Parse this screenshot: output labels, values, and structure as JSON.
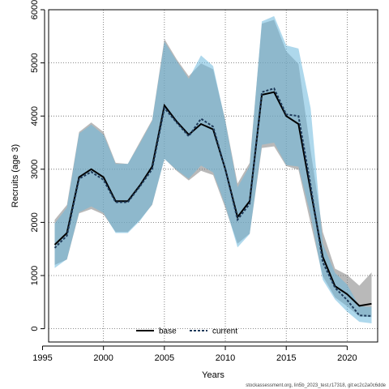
{
  "chart_data": {
    "type": "line",
    "xlabel": "Years",
    "ylabel": "Recruits (age 3)",
    "xlim": [
      1995.5,
      2022.5
    ],
    "ylim": [
      -250,
      6000
    ],
    "xticks": [
      1995,
      2000,
      2005,
      2010,
      2015,
      2020
    ],
    "yticks": [
      0,
      1000,
      2000,
      3000,
      4000,
      5000,
      6000
    ],
    "grid": true,
    "legend_position": "bottom-center",
    "x": [
      1996,
      1997,
      1998,
      1999,
      2000,
      2001,
      2002,
      2003,
      2004,
      2005,
      2006,
      2007,
      2008,
      2009,
      2010,
      2011,
      2012,
      2013,
      2014,
      2015,
      2016,
      2017,
      2018,
      2019,
      2020,
      2021,
      2022
    ],
    "series": [
      {
        "name": "base",
        "color": "#000000",
        "line_style": "solid",
        "band_color": "#808080",
        "values": [
          1580,
          1800,
          2850,
          3000,
          2850,
          2400,
          2400,
          2700,
          3050,
          4200,
          3900,
          3650,
          3850,
          3750,
          3000,
          2100,
          2400,
          4400,
          4450,
          4000,
          3850,
          2600,
          1350,
          800,
          650,
          430,
          470
        ],
        "upper": [
          2050,
          2330,
          3700,
          3880,
          3700,
          3120,
          3100,
          3520,
          3930,
          5450,
          5070,
          4750,
          4990,
          4880,
          3920,
          2730,
          3120,
          5740,
          5810,
          5220,
          4980,
          3350,
          1820,
          1130,
          1010,
          810,
          1060
        ],
        "lower": [
          1200,
          1300,
          2170,
          2250,
          2150,
          1820,
          1820,
          2050,
          2330,
          3200,
          2970,
          2790,
          2970,
          2890,
          2270,
          1600,
          1790,
          3400,
          3430,
          3060,
          2990,
          1980,
          990,
          590,
          420,
          230,
          220
        ]
      },
      {
        "name": "current",
        "color": "#1f3a5a",
        "line_style": "dashed",
        "band_color": "#6cb8dc",
        "values": [
          1520,
          1750,
          2820,
          2950,
          2800,
          2380,
          2380,
          2680,
          3000,
          4150,
          3880,
          3620,
          3950,
          3800,
          3000,
          2050,
          2350,
          4450,
          4520,
          4030,
          4000,
          2700,
          1250,
          770,
          540,
          250,
          240
        ],
        "upper": [
          1980,
          2280,
          3670,
          3840,
          3650,
          3100,
          3100,
          3490,
          3910,
          5400,
          5040,
          4700,
          5140,
          4940,
          3900,
          2660,
          3060,
          5780,
          5880,
          5330,
          5270,
          4150,
          1600,
          1050,
          830,
          420,
          410
        ],
        "lower": [
          1140,
          1310,
          2190,
          2300,
          2180,
          1800,
          1800,
          2030,
          2340,
          3190,
          2990,
          2820,
          3070,
          2940,
          2320,
          1530,
          1780,
          3460,
          3500,
          3080,
          3050,
          2140,
          920,
          550,
          320,
          130,
          100
        ]
      }
    ]
  },
  "caption": "stockassessment.org, lin5b_2023_test,r17318, git:ec2c2a0c6dde"
}
